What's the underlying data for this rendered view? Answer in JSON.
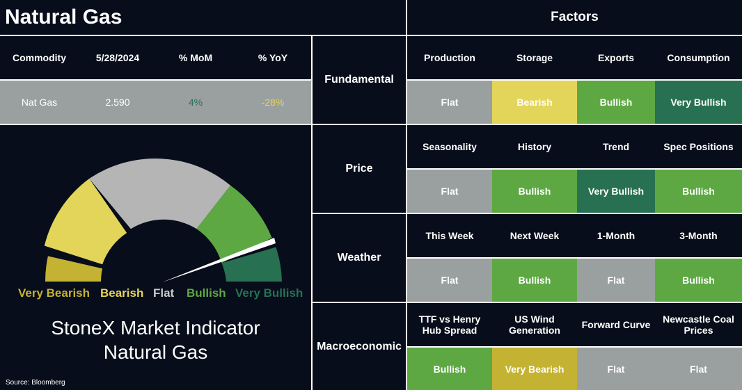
{
  "title": "Natural Gas",
  "factors_title": "Factors",
  "colors": {
    "background": "#070d1a",
    "flat": "#9aa0a0",
    "bearish": "#e3d55a",
    "bullish": "#5da843",
    "very_bullish": "#277152",
    "very_bearish": "#c4b233",
    "mom_positive": "#5da843",
    "yoy_negative": "#e3d55a"
  },
  "commodity_table": {
    "headers": [
      "Commodity",
      "5/28/2024",
      "% MoM",
      "% YoY"
    ],
    "row": [
      "Nat Gas",
      "2.590",
      "4%",
      "-28%"
    ]
  },
  "gauge": {
    "labels": [
      "Very Bearish",
      "Bearish",
      "Flat",
      "Bullish",
      "Very Bullish"
    ],
    "label_colors": [
      "#c4b233",
      "#e3d55a",
      "#c9cccc",
      "#5da843",
      "#277152"
    ],
    "needle_category": "Very Bullish"
  },
  "indicator": {
    "line1": "StoneX Market Indicator",
    "line2": "Natural Gas"
  },
  "source": "Source: Bloomberg",
  "factors": [
    {
      "label": "Fundamental",
      "headers": [
        "Production",
        "Storage",
        "Exports",
        "Consumption"
      ],
      "values": [
        "Flat",
        "Bearish",
        "Bullish",
        "Very Bullish"
      ]
    },
    {
      "label": "Price",
      "headers": [
        "Seasonality",
        "History",
        "Trend",
        "Spec Positions"
      ],
      "values": [
        "Flat",
        "Bullish",
        "Very Bullish",
        "Bullish"
      ]
    },
    {
      "label": "Weather",
      "headers": [
        "This Week",
        "Next Week",
        "1-Month",
        "3-Month"
      ],
      "values": [
        "Flat",
        "Bullish",
        "Flat",
        "Bullish"
      ]
    },
    {
      "label": "Macroeconomic",
      "headers": [
        "TTF vs Henry Hub Spread",
        "US Wind Generation",
        "Forward Curve",
        "Newcastle Coal Prices"
      ],
      "values": [
        "Bullish",
        "Very Bearish",
        "Flat",
        "Flat"
      ]
    }
  ]
}
